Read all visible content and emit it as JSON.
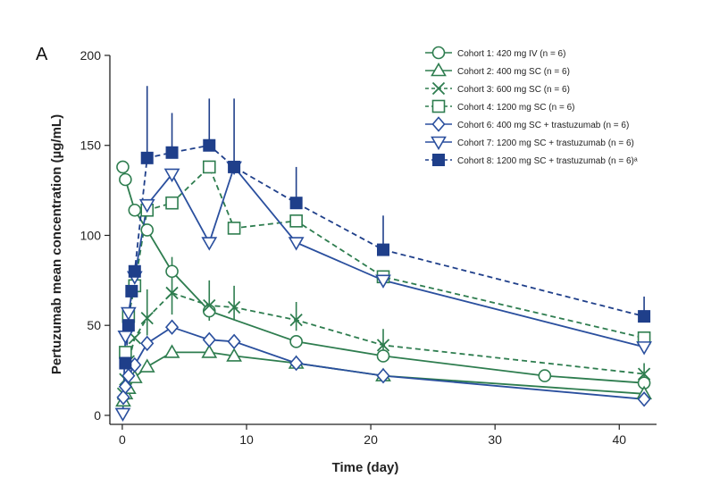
{
  "panel_label": "A",
  "chart_data": {
    "type": "line",
    "xlabel": "Time (day)",
    "ylabel": "Pertuzumab mean concentration (µg/mL)",
    "xlim": [
      -1,
      43
    ],
    "ylim": [
      -5,
      200
    ],
    "x_ticks": [
      0,
      10,
      20,
      30,
      40
    ],
    "y_ticks": [
      0,
      50,
      100,
      150,
      200
    ],
    "grid": false,
    "legend_position": "top-right",
    "series": [
      {
        "name": "Cohort 1: 420 mg IV (n = 6)",
        "color": "#2e7d4f",
        "marker": "circle-open",
        "dash": "solid",
        "x": [
          0.04,
          0.25,
          1,
          2,
          4,
          7,
          14,
          21,
          34,
          42
        ],
        "y": [
          138,
          131,
          114,
          103,
          80,
          58,
          41,
          33,
          22,
          18
        ]
      },
      {
        "name": "Cohort 2: 400 mg SC (n = 6)",
        "color": "#2e7d4f",
        "marker": "triangle-up-open",
        "dash": "solid",
        "x": [
          0.08,
          0.25,
          0.5,
          1,
          2,
          4,
          7,
          9,
          14,
          21,
          42
        ],
        "y": [
          8,
          12,
          15,
          21,
          27,
          35,
          35,
          33,
          29,
          22,
          12
        ],
        "err": [
          null,
          null,
          null,
          null,
          null,
          null,
          null,
          null,
          null,
          null,
          null
        ]
      },
      {
        "name": "Cohort 3: 600 mg SC (n = 6)",
        "color": "#2e7d4f",
        "marker": "x",
        "dash": "dash",
        "x": [
          0.08,
          0.25,
          0.5,
          1,
          2,
          4,
          7,
          9,
          14,
          21,
          42
        ],
        "y": [
          12,
          20,
          30,
          43,
          54,
          68,
          61,
          60,
          53,
          39,
          23
        ],
        "err": [
          null,
          null,
          null,
          null,
          16,
          20,
          14,
          12,
          10,
          9,
          6
        ]
      },
      {
        "name": "Cohort 4: 1200 mg SC (n = 6)",
        "color": "#2e7d4f",
        "marker": "square-open",
        "dash": "dash",
        "x": [
          0.25,
          0.5,
          1,
          2,
          4,
          7,
          9,
          14,
          21,
          42
        ],
        "y": [
          35,
          55,
          72,
          114,
          118,
          138,
          104,
          108,
          77,
          43
        ]
      },
      {
        "name": "Cohort 6: 400 mg SC + trastuzumab (n = 6)",
        "color": "#2a4f9e",
        "marker": "diamond-open",
        "dash": "solid",
        "x": [
          0.08,
          0.25,
          0.5,
          1,
          2,
          4,
          7,
          9,
          14,
          21,
          42
        ],
        "y": [
          10,
          16,
          22,
          28,
          40,
          49,
          42,
          41,
          29,
          22,
          9
        ]
      },
      {
        "name": "Cohort 7: 1200 mg SC + trastuzumab (n = 6)",
        "color": "#2a4f9e",
        "marker": "triangle-down-open",
        "dash": "solid",
        "x": [
          0.04,
          0.25,
          0.5,
          1,
          2,
          4,
          7,
          9,
          14,
          21,
          42
        ],
        "y": [
          1,
          44,
          57,
          77,
          117,
          134,
          96,
          138,
          96,
          75,
          38
        ]
      },
      {
        "name": "Cohort 8: 1200 mg SC + trastuzumab (n = 6)ᵃ",
        "color": "#1f3f8a",
        "marker": "square-filled",
        "dash": "dash",
        "x": [
          0.25,
          0.5,
          0.75,
          1,
          2,
          4,
          7,
          9,
          14,
          21,
          42
        ],
        "y": [
          29,
          50,
          69,
          80,
          143,
          146,
          150,
          138,
          118,
          92,
          55
        ],
        "err": [
          null,
          null,
          null,
          null,
          40,
          22,
          26,
          38,
          20,
          19,
          11
        ]
      }
    ]
  }
}
